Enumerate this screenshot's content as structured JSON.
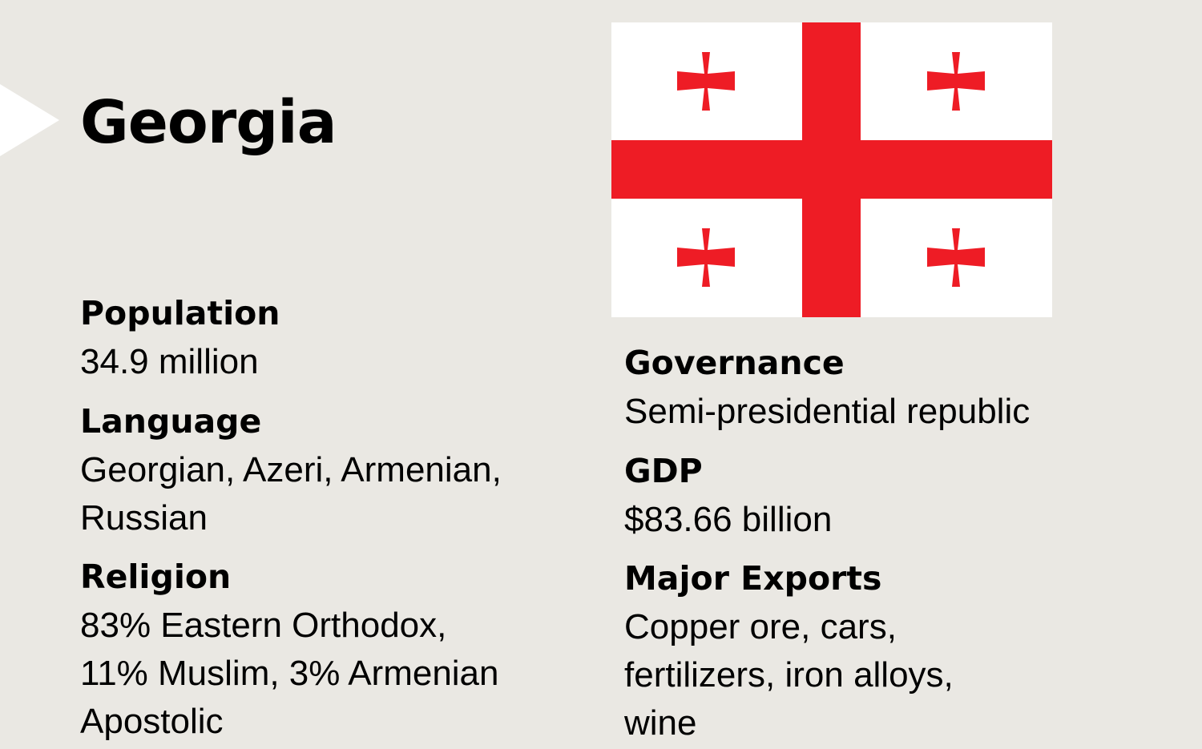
{
  "country": {
    "name": "Georgia"
  },
  "flag": {
    "colors": {
      "background": "#ffffff",
      "cross": "#ee1c25"
    }
  },
  "colors": {
    "page_background": "#eae8e3",
    "text": "#000000",
    "tab_arrow": "#ffffff"
  },
  "facts": {
    "population": {
      "label": "Population",
      "lines": [
        "34.9 million"
      ]
    },
    "language": {
      "label": "Language",
      "lines": [
        "Georgian, Azeri, Armenian,",
        "Russian"
      ]
    },
    "religion": {
      "label": "Religion",
      "lines": [
        "83% Eastern Orthodox,",
        "11% Muslim, 3% Armenian",
        "Apostolic"
      ]
    },
    "governance": {
      "label": "Governance",
      "lines": [
        "Semi-presidential republic"
      ]
    },
    "gdp": {
      "label": "GDP",
      "lines": [
        "$83.66 billion"
      ]
    },
    "major_exports": {
      "label": "Major Exports",
      "lines": [
        "Copper ore, cars,",
        "fertilizers, iron alloys,",
        "wine"
      ]
    }
  }
}
